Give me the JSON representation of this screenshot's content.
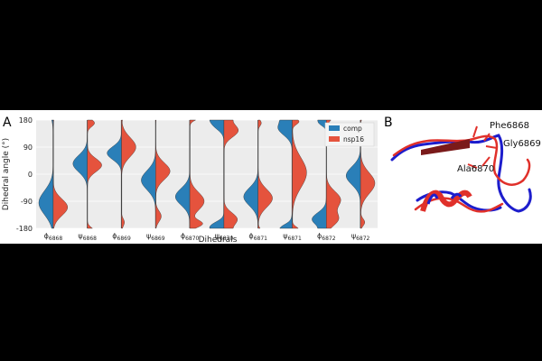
{
  "panels": {
    "a": "A",
    "b": "B"
  },
  "chart_data": {
    "type": "violin",
    "title": "",
    "xlabel": "Dihedrals",
    "ylabel": "Dihedral angle (°)",
    "ylim": [
      -180,
      180
    ],
    "y_ticks": [
      180,
      90,
      0,
      -90,
      -180
    ],
    "grid": true,
    "legend_position": "top-right",
    "categories": [
      {
        "sym": "ϕ",
        "sub": "6868"
      },
      {
        "sym": "ψ",
        "sub": "6868"
      },
      {
        "sym": "ϕ",
        "sub": "6869"
      },
      {
        "sym": "ψ",
        "sub": "6869"
      },
      {
        "sym": "ϕ",
        "sub": "6870"
      },
      {
        "sym": "ψ",
        "sub": "6870"
      },
      {
        "sym": "ϕ",
        "sub": "6871"
      },
      {
        "sym": "ψ",
        "sub": "6871"
      },
      {
        "sym": "ϕ",
        "sub": "6872"
      },
      {
        "sym": "ψ",
        "sub": "6872"
      }
    ],
    "series": [
      {
        "name": "comp",
        "color": "#2a7fb8",
        "side": "left",
        "distributions": [
          [
            [
              -95,
              40,
              1.0
            ]
          ],
          [
            [
              35,
              28,
              0.95
            ]
          ],
          [
            [
              70,
              22,
              1.0
            ]
          ],
          [
            [
              -20,
              32,
              0.95
            ]
          ],
          [
            [
              -75,
              28,
              1.0
            ]
          ],
          [
            [
              165,
              18,
              0.7
            ],
            [
              -170,
              14,
              0.65
            ]
          ],
          [
            [
              -75,
              30,
              0.95
            ]
          ],
          [
            [
              155,
              25,
              1.0
            ],
            [
              -175,
              10,
              0.3
            ]
          ],
          [
            [
              -150,
              22,
              1.0
            ],
            [
              170,
              10,
              0.35
            ]
          ],
          [
            [
              -5,
              30,
              0.95
            ]
          ]
        ]
      },
      {
        "name": "nsp16",
        "color": "#e5533d",
        "side": "right",
        "distributions": [
          [
            [
              -110,
              28,
              1.0
            ]
          ],
          [
            [
              30,
              22,
              0.9
            ],
            [
              170,
              12,
              0.45
            ]
          ],
          [
            [
              90,
              32,
              1.0
            ],
            [
              -160,
              12,
              0.2
            ]
          ],
          [
            [
              10,
              28,
              0.9
            ],
            [
              -140,
              18,
              0.35
            ]
          ],
          [
            [
              -90,
              30,
              0.7
            ],
            [
              -165,
              12,
              0.6
            ]
          ],
          [
            [
              145,
              22,
              0.75
            ],
            [
              -150,
              22,
              0.7
            ]
          ],
          [
            [
              -80,
              30,
              0.9
            ],
            [
              170,
              10,
              0.2
            ]
          ],
          [
            [
              5,
              50,
              0.85
            ],
            [
              175,
              10,
              0.4
            ]
          ],
          [
            [
              -85,
              28,
              0.75
            ],
            [
              -150,
              22,
              0.6
            ]
          ],
          [
            [
              -30,
              35,
              0.85
            ],
            [
              -160,
              12,
              0.25
            ]
          ]
        ]
      }
    ]
  },
  "structure": {
    "labels": [
      "Phe6868",
      "Gly6869",
      "Ala6870"
    ],
    "colors": {
      "comp": "#1d1dcc",
      "nsp16": "#e0302a"
    }
  }
}
